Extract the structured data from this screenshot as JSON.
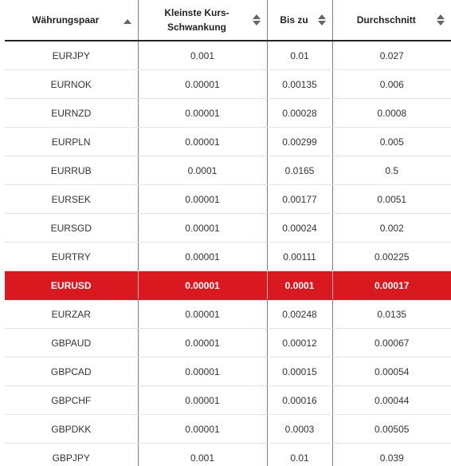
{
  "header": {
    "pair_label": "Währungspaar",
    "min_fluct_label": "Kleinste Kurs-Schwankung",
    "up_to_label": "Bis zu",
    "average_label": "Durchschnitt"
  },
  "colors": {
    "highlight": "#d9181f",
    "divider": "#6e8797"
  },
  "icons": {
    "sort_asc": "sort-asc-icon",
    "sort": "sort-both-icon"
  },
  "rows": [
    {
      "pair": "EURJPY",
      "min": "0.001",
      "up_to": "0.01",
      "avg": "0.027"
    },
    {
      "pair": "EURNOK",
      "min": "0.00001",
      "up_to": "0.00135",
      "avg": "0.006"
    },
    {
      "pair": "EURNZD",
      "min": "0.00001",
      "up_to": "0.00028",
      "avg": "0.0008"
    },
    {
      "pair": "EURPLN",
      "min": "0.00001",
      "up_to": "0.00299",
      "avg": "0.005"
    },
    {
      "pair": "EURRUB",
      "min": "0.0001",
      "up_to": "0.0165",
      "avg": "0.5"
    },
    {
      "pair": "EURSEK",
      "min": "0.00001",
      "up_to": "0.00177",
      "avg": "0.0051"
    },
    {
      "pair": "EURSGD",
      "min": "0.00001",
      "up_to": "0.00024",
      "avg": "0.002"
    },
    {
      "pair": "EURTRY",
      "min": "0.00001",
      "up_to": "0.00111",
      "avg": "0.00225"
    },
    {
      "pair": "EURUSD",
      "min": "0.00001",
      "up_to": "0.0001",
      "avg": "0.00017",
      "highlighted": true
    },
    {
      "pair": "EURZAR",
      "min": "0.00001",
      "up_to": "0.00248",
      "avg": "0.0135"
    },
    {
      "pair": "GBPAUD",
      "min": "0.00001",
      "up_to": "0.00012",
      "avg": "0.00067"
    },
    {
      "pair": "GBPCAD",
      "min": "0.00001",
      "up_to": "0.00015",
      "avg": "0.00054"
    },
    {
      "pair": "GBPCHF",
      "min": "0.00001",
      "up_to": "0.00016",
      "avg": "0.00044"
    },
    {
      "pair": "GBPDKK",
      "min": "0.00001",
      "up_to": "0.0003",
      "avg": "0.00505"
    },
    {
      "pair": "GBPJPY",
      "min": "0.001",
      "up_to": "0.01",
      "avg": "0.039"
    }
  ]
}
